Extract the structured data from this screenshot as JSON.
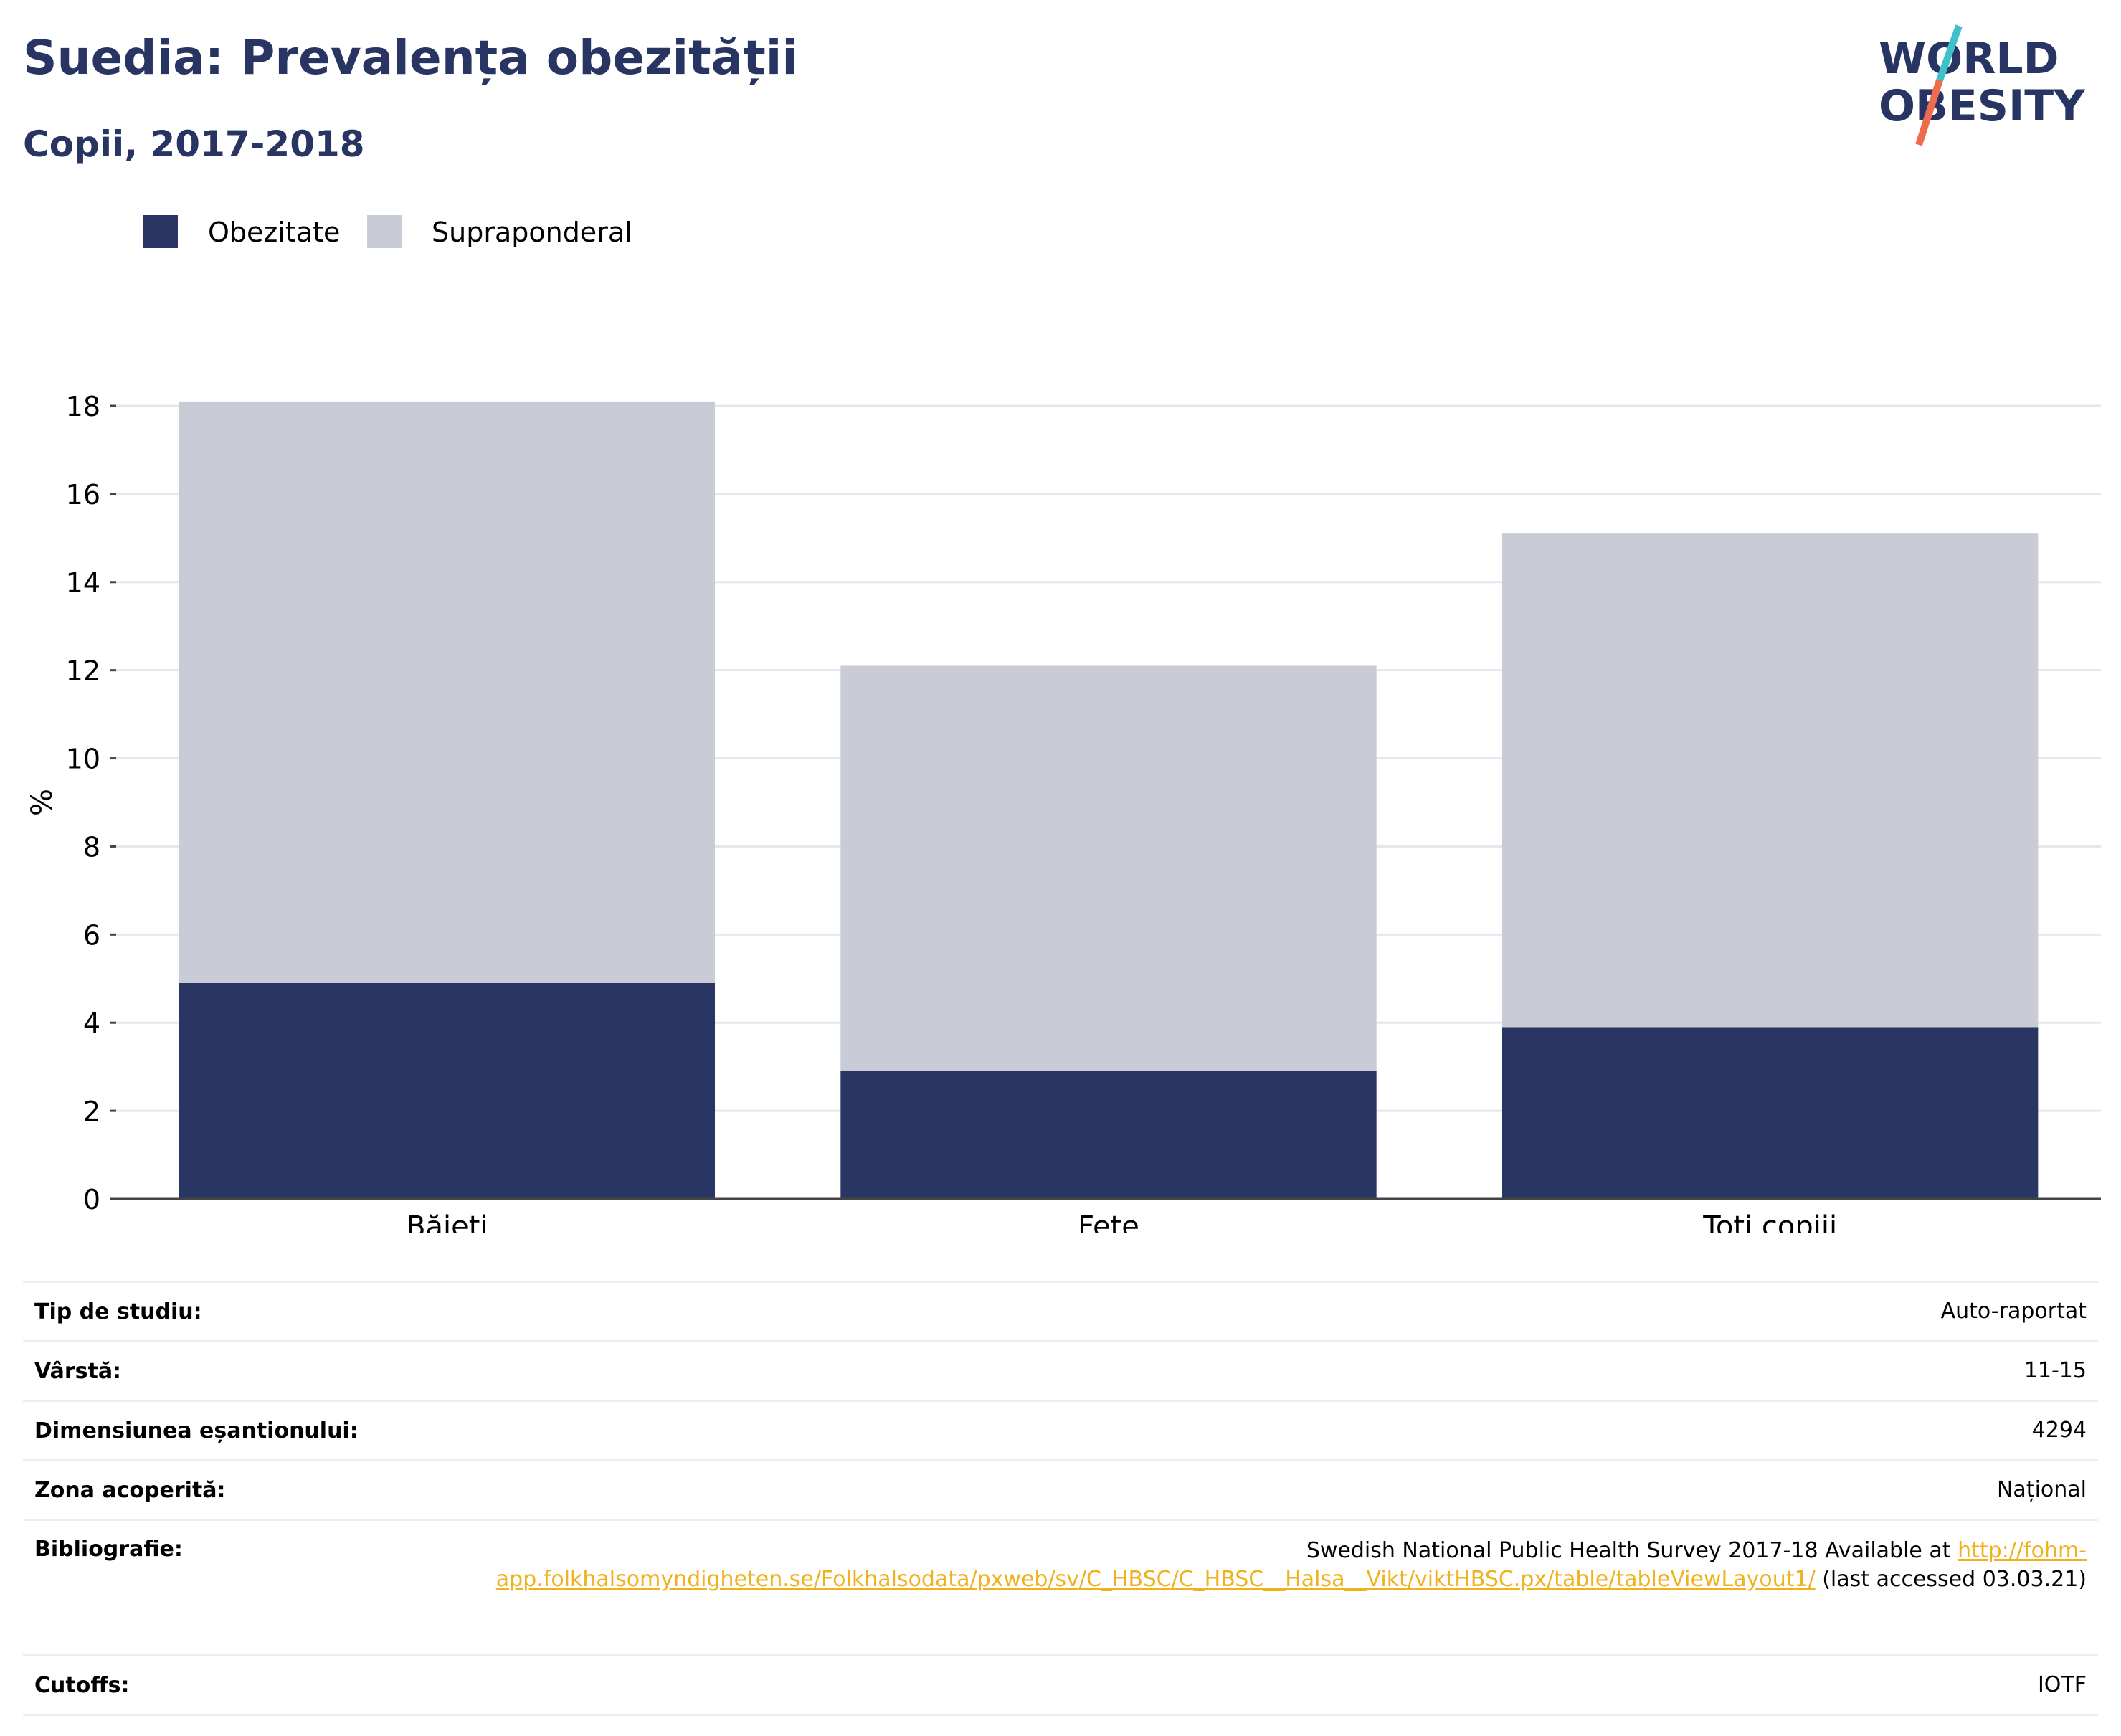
{
  "title": "Suedia: Prevalența obezității",
  "subtitle": "Copii, 2017-2018",
  "logo": {
    "line1": "WORLD",
    "line2": "OBESITY"
  },
  "colors": {
    "obesity": "#293664",
    "overweight": "#c9ccd7",
    "title": "#283461",
    "link": "#f0b21c",
    "logo_slash_top": "#3fc1c9",
    "logo_slash_bottom": "#ef6b4f"
  },
  "chart_data": {
    "type": "bar",
    "stacked": true,
    "categories": [
      "Băieți",
      "Fete",
      "Toți copiii"
    ],
    "series": [
      {
        "name": "Obezitate",
        "values": [
          4.9,
          2.9,
          3.9
        ]
      },
      {
        "name": "Supraponderal",
        "values": [
          13.2,
          9.2,
          11.2
        ]
      }
    ],
    "ylabel": "%",
    "ylim": [
      0,
      18
    ],
    "yticks": [
      0,
      2,
      4,
      6,
      8,
      10,
      12,
      14,
      16,
      18
    ],
    "grid": true,
    "legend_position": "top-left"
  },
  "info": {
    "study_type": {
      "label": "Tip de studiu:",
      "value": "Auto-raportat"
    },
    "age": {
      "label": "Vârstă:",
      "value": "11-15"
    },
    "sample_size": {
      "label": "Dimensiunea eșantionului:",
      "value": "4294"
    },
    "area": {
      "label": "Zona acoperită:",
      "value": "Național"
    },
    "bibliography": {
      "label": "Bibliografie:",
      "text_before": "Swedish National Public Health Survey 2017-18 Available at ",
      "link": "http://fohm-app.folkhalsomyndigheten.se/Folkhalsodata/pxweb/sv/C_HBSC/C_HBSC__Halsa__Vikt/viktHBSC.px/table/tableViewLayout1/",
      "text_after": " (last accessed 03.03.21)"
    },
    "cutoffs": {
      "label": "Cutoffs:",
      "value": "IOTF"
    }
  }
}
